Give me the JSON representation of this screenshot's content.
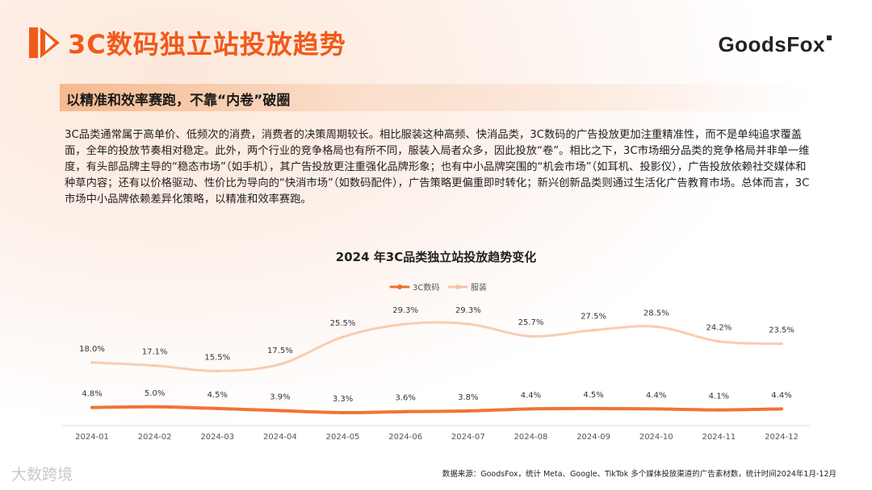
{
  "header": {
    "title": "3C数码独立站投放趋势",
    "brand_main": "GoodsFox",
    "accent_color": "#f05a1a"
  },
  "subtitle": "以精准和效率赛跑，不靠“内卷”破圈",
  "body_text": "3C品类通常属于高单价、低频次的消费，消费者的决策周期较长。相比服装这种高频、快消品类，3C数码的广告投放更加注重精准性，而不是单纯追求覆盖面，全年的投放节奏相对稳定。此外，两个行业的竞争格局也有所不同，服装入局者众多，因此投放“卷”。相比之下，3C市场细分品类的竞争格局并非单一维度，有头部品牌主导的“稳态市场”（如手机），其广告投放更注重强化品牌形象；也有中小品牌突围的“机会市场”（如耳机、投影仪），广告投放依赖社交媒体和种草内容；还有以价格驱动、性价比为导向的“快消市场”（如数码配件），广告策略更偏重即时转化；新兴创新品类则通过生活化广告教育市场。总体而言，3C市场中小品牌依赖差异化策略，以精准和效率赛跑。",
  "chart_data": {
    "type": "line",
    "title": "2024 年3C品类独立站投放趋势变化",
    "categories": [
      "2024-01",
      "2024-02",
      "2024-03",
      "2024-04",
      "2024-05",
      "2024-06",
      "2024-07",
      "2024-08",
      "2024-09",
      "2024-10",
      "2024-11",
      "2024-12"
    ],
    "series": [
      {
        "name": "3C数码",
        "color": "#f26b2a",
        "values": [
          4.8,
          5.0,
          4.5,
          3.9,
          3.3,
          3.6,
          3.8,
          4.4,
          4.5,
          4.4,
          4.1,
          4.4
        ],
        "labels": [
          "4.8%",
          "5.0%",
          "4.5%",
          "3.9%",
          "3.3%",
          "3.6%",
          "3.8%",
          "4.4%",
          "4.5%",
          "4.4%",
          "4.1%",
          "4.4%"
        ]
      },
      {
        "name": "服装",
        "color": "#f7c4a3",
        "values": [
          18.0,
          17.1,
          15.5,
          17.5,
          25.5,
          29.3,
          29.3,
          25.7,
          27.5,
          28.5,
          24.2,
          23.5
        ],
        "labels": [
          "18.0%",
          "17.1%",
          "15.5%",
          "17.5%",
          "25.5%",
          "29.3%",
          "29.3%",
          "25.7%",
          "27.5%",
          "28.5%",
          "24.2%",
          "23.5%"
        ]
      }
    ],
    "legend_position": "top-center",
    "grid": false
  },
  "footer": {
    "source": "数据来源：GoodsFox，统计 Meta、Google、TikTok 多个媒体投放渠道的广告素材数，统计时间2024年1月-12月",
    "watermark": "大数跨境"
  }
}
